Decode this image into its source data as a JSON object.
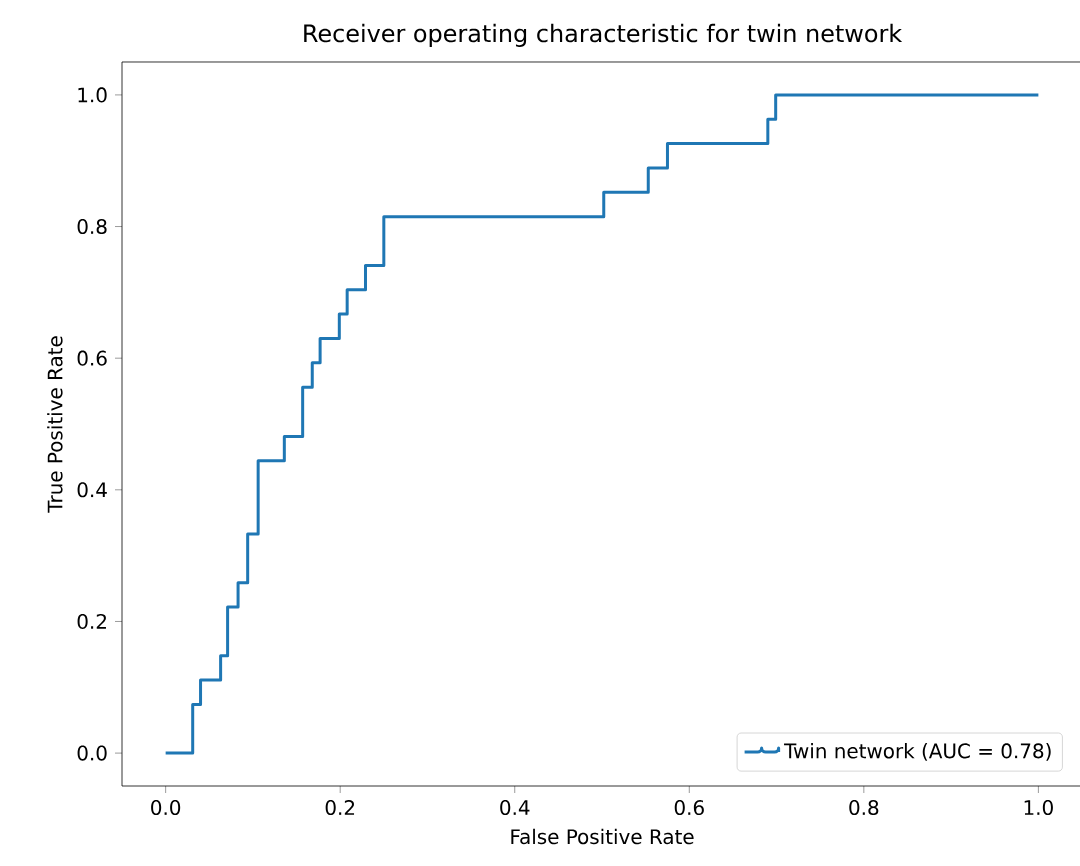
{
  "chart_data": {
    "type": "step",
    "title": "Receiver operating characteristic for twin network",
    "xlabel": "False Positive Rate",
    "ylabel": "True Positive Rate",
    "series": [
      {
        "name": "Twin network (AUC = 0.78)",
        "color": "#1f77b4",
        "x": [
          0,
          0.031,
          0.04,
          0.063,
          0.071,
          0.083,
          0.094,
          0.106,
          0.136,
          0.157,
          0.168,
          0.177,
          0.199,
          0.208,
          0.229,
          0.25,
          0.502,
          0.553,
          0.575,
          0.69,
          0.699,
          1.0
        ],
        "values": [
          0,
          0.074,
          0.111,
          0.148,
          0.222,
          0.259,
          0.333,
          0.444,
          0.481,
          0.556,
          0.593,
          0.63,
          0.667,
          0.704,
          0.741,
          0.815,
          0.852,
          0.889,
          0.926,
          0.963,
          1.0,
          1.0
        ]
      }
    ],
    "xlim": [
      -0.05,
      1.05
    ],
    "ylim": [
      -0.05,
      1.05
    ],
    "xticks": [
      {
        "value": 0,
        "label": "0.0"
      },
      {
        "value": 0.2,
        "label": "0.2"
      },
      {
        "value": 0.4,
        "label": "0.4"
      },
      {
        "value": 0.6,
        "label": "0.6"
      },
      {
        "value": 0.8,
        "label": "0.8"
      },
      {
        "value": 1.0,
        "label": "1.0"
      }
    ],
    "yticks": [
      {
        "value": 0,
        "label": "0.0"
      },
      {
        "value": 0.2,
        "label": "0.2"
      },
      {
        "value": 0.4,
        "label": "0.4"
      },
      {
        "value": 0.6,
        "label": "0.6"
      },
      {
        "value": 0.8,
        "label": "0.8"
      },
      {
        "value": 1.0,
        "label": "1.0"
      }
    ],
    "legend": "bottom right",
    "grid": false
  }
}
